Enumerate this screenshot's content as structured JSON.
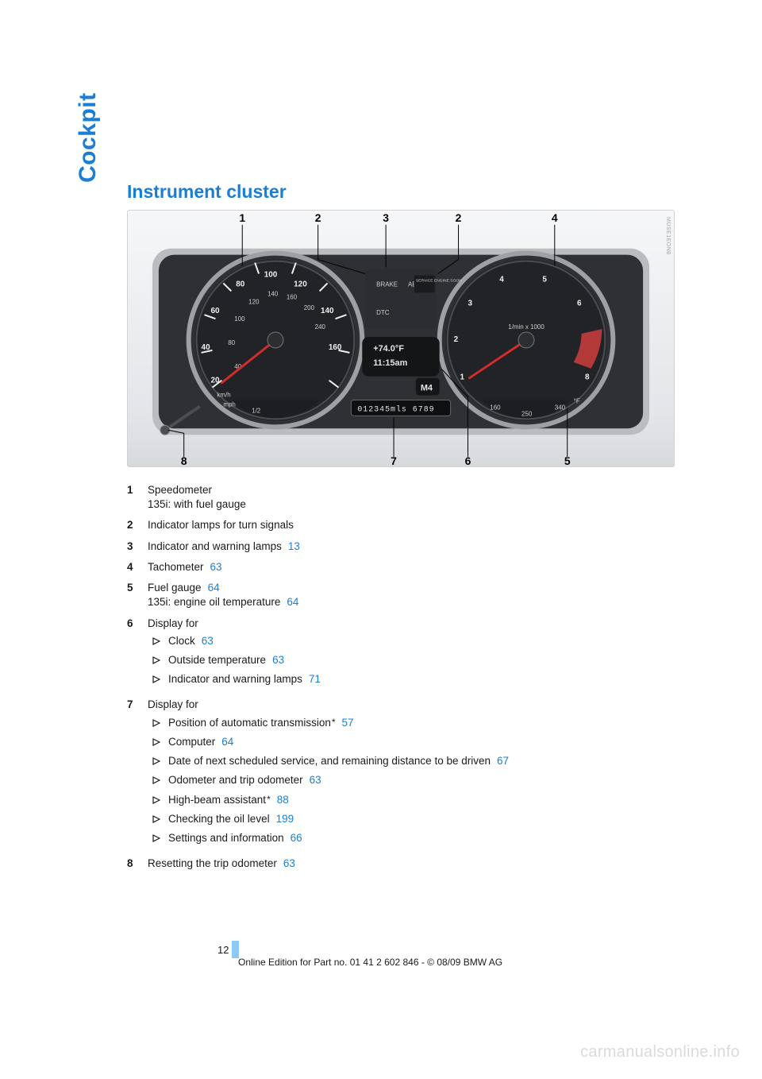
{
  "section_label": "Cockpit",
  "title": "Instrument cluster",
  "figure": {
    "callouts_top": [
      1,
      2,
      3,
      2,
      4
    ],
    "callouts_bottom": [
      8,
      7,
      6,
      5
    ],
    "speedo": {
      "mph_labels": [
        "20",
        "40",
        "60",
        "80",
        "100",
        "120",
        "140",
        "160"
      ],
      "kmh_labels": [
        "20",
        "40",
        "60",
        "80",
        "100",
        "120",
        "140",
        "160",
        "180",
        "200",
        "220",
        "240",
        "260"
      ],
      "unit_mph": "mph",
      "unit_kmh": "km/h"
    },
    "tach": {
      "labels": [
        "1",
        "2",
        "3",
        "4",
        "5",
        "6",
        "7",
        "8"
      ],
      "unit": "1/min x 1000"
    },
    "center": {
      "brake": "BRAKE",
      "service": "SERVICE ENGINE SOON",
      "dtc": "DTC",
      "abs": "ABS"
    },
    "lcd": {
      "temp": "+74.0°F",
      "time": "11:15am",
      "gear": "M4"
    },
    "odo": "012345mls  6789",
    "fuel": {
      "low": "0",
      "half": "1/2",
      "full": "1"
    },
    "oil_temp": {
      "low": "160",
      "mid": "250",
      "high": "340",
      "unit": "°F"
    },
    "credit": "MUSE1EON8"
  },
  "legend": [
    {
      "n": "1",
      "lines": [
        "Speedometer",
        "135i: with fuel gauge"
      ]
    },
    {
      "n": "2",
      "lines": [
        "Indicator lamps for turn signals"
      ]
    },
    {
      "n": "3",
      "lines": [
        "Indicator and warning lamps"
      ],
      "ref": "13"
    },
    {
      "n": "4",
      "lines": [
        "Tachometer"
      ],
      "ref": "63"
    },
    {
      "n": "5",
      "lines": [
        "Fuel gauge"
      ],
      "ref": "64",
      "second": {
        "text": "135i: engine oil temperature",
        "ref": "64"
      }
    },
    {
      "n": "6",
      "lines": [
        "Display for"
      ],
      "sub": [
        {
          "text": "Clock",
          "ref": "63"
        },
        {
          "text": "Outside temperature",
          "ref": "63"
        },
        {
          "text": "Indicator and warning lamps",
          "ref": "71"
        }
      ]
    },
    {
      "n": "7",
      "lines": [
        "Display for"
      ],
      "sub": [
        {
          "text": "Position of automatic transmission",
          "star": true,
          "ref": "57"
        },
        {
          "text": "Computer",
          "ref": "64"
        },
        {
          "text": "Date of next scheduled service, and remaining distance to be driven",
          "ref": "67"
        },
        {
          "text": "Odometer and trip odometer",
          "ref": "63"
        },
        {
          "text": "High-beam assistant",
          "star": true,
          "ref": "88"
        },
        {
          "text": "Checking the oil level",
          "ref": "199"
        },
        {
          "text": "Settings and information",
          "ref": "66"
        }
      ]
    },
    {
      "n": "8",
      "lines": [
        "Resetting the trip odometer"
      ],
      "ref": "63"
    }
  ],
  "page_number": "12",
  "footer": "Online Edition for Part no. 01 41 2 602 846 - © 08/09 BMW AG",
  "watermark": "carmanualsonline.info",
  "colors": {
    "accent": "#1a7fd4",
    "pagebar": "#8ec9f4",
    "watermark": "#d9dadc"
  }
}
